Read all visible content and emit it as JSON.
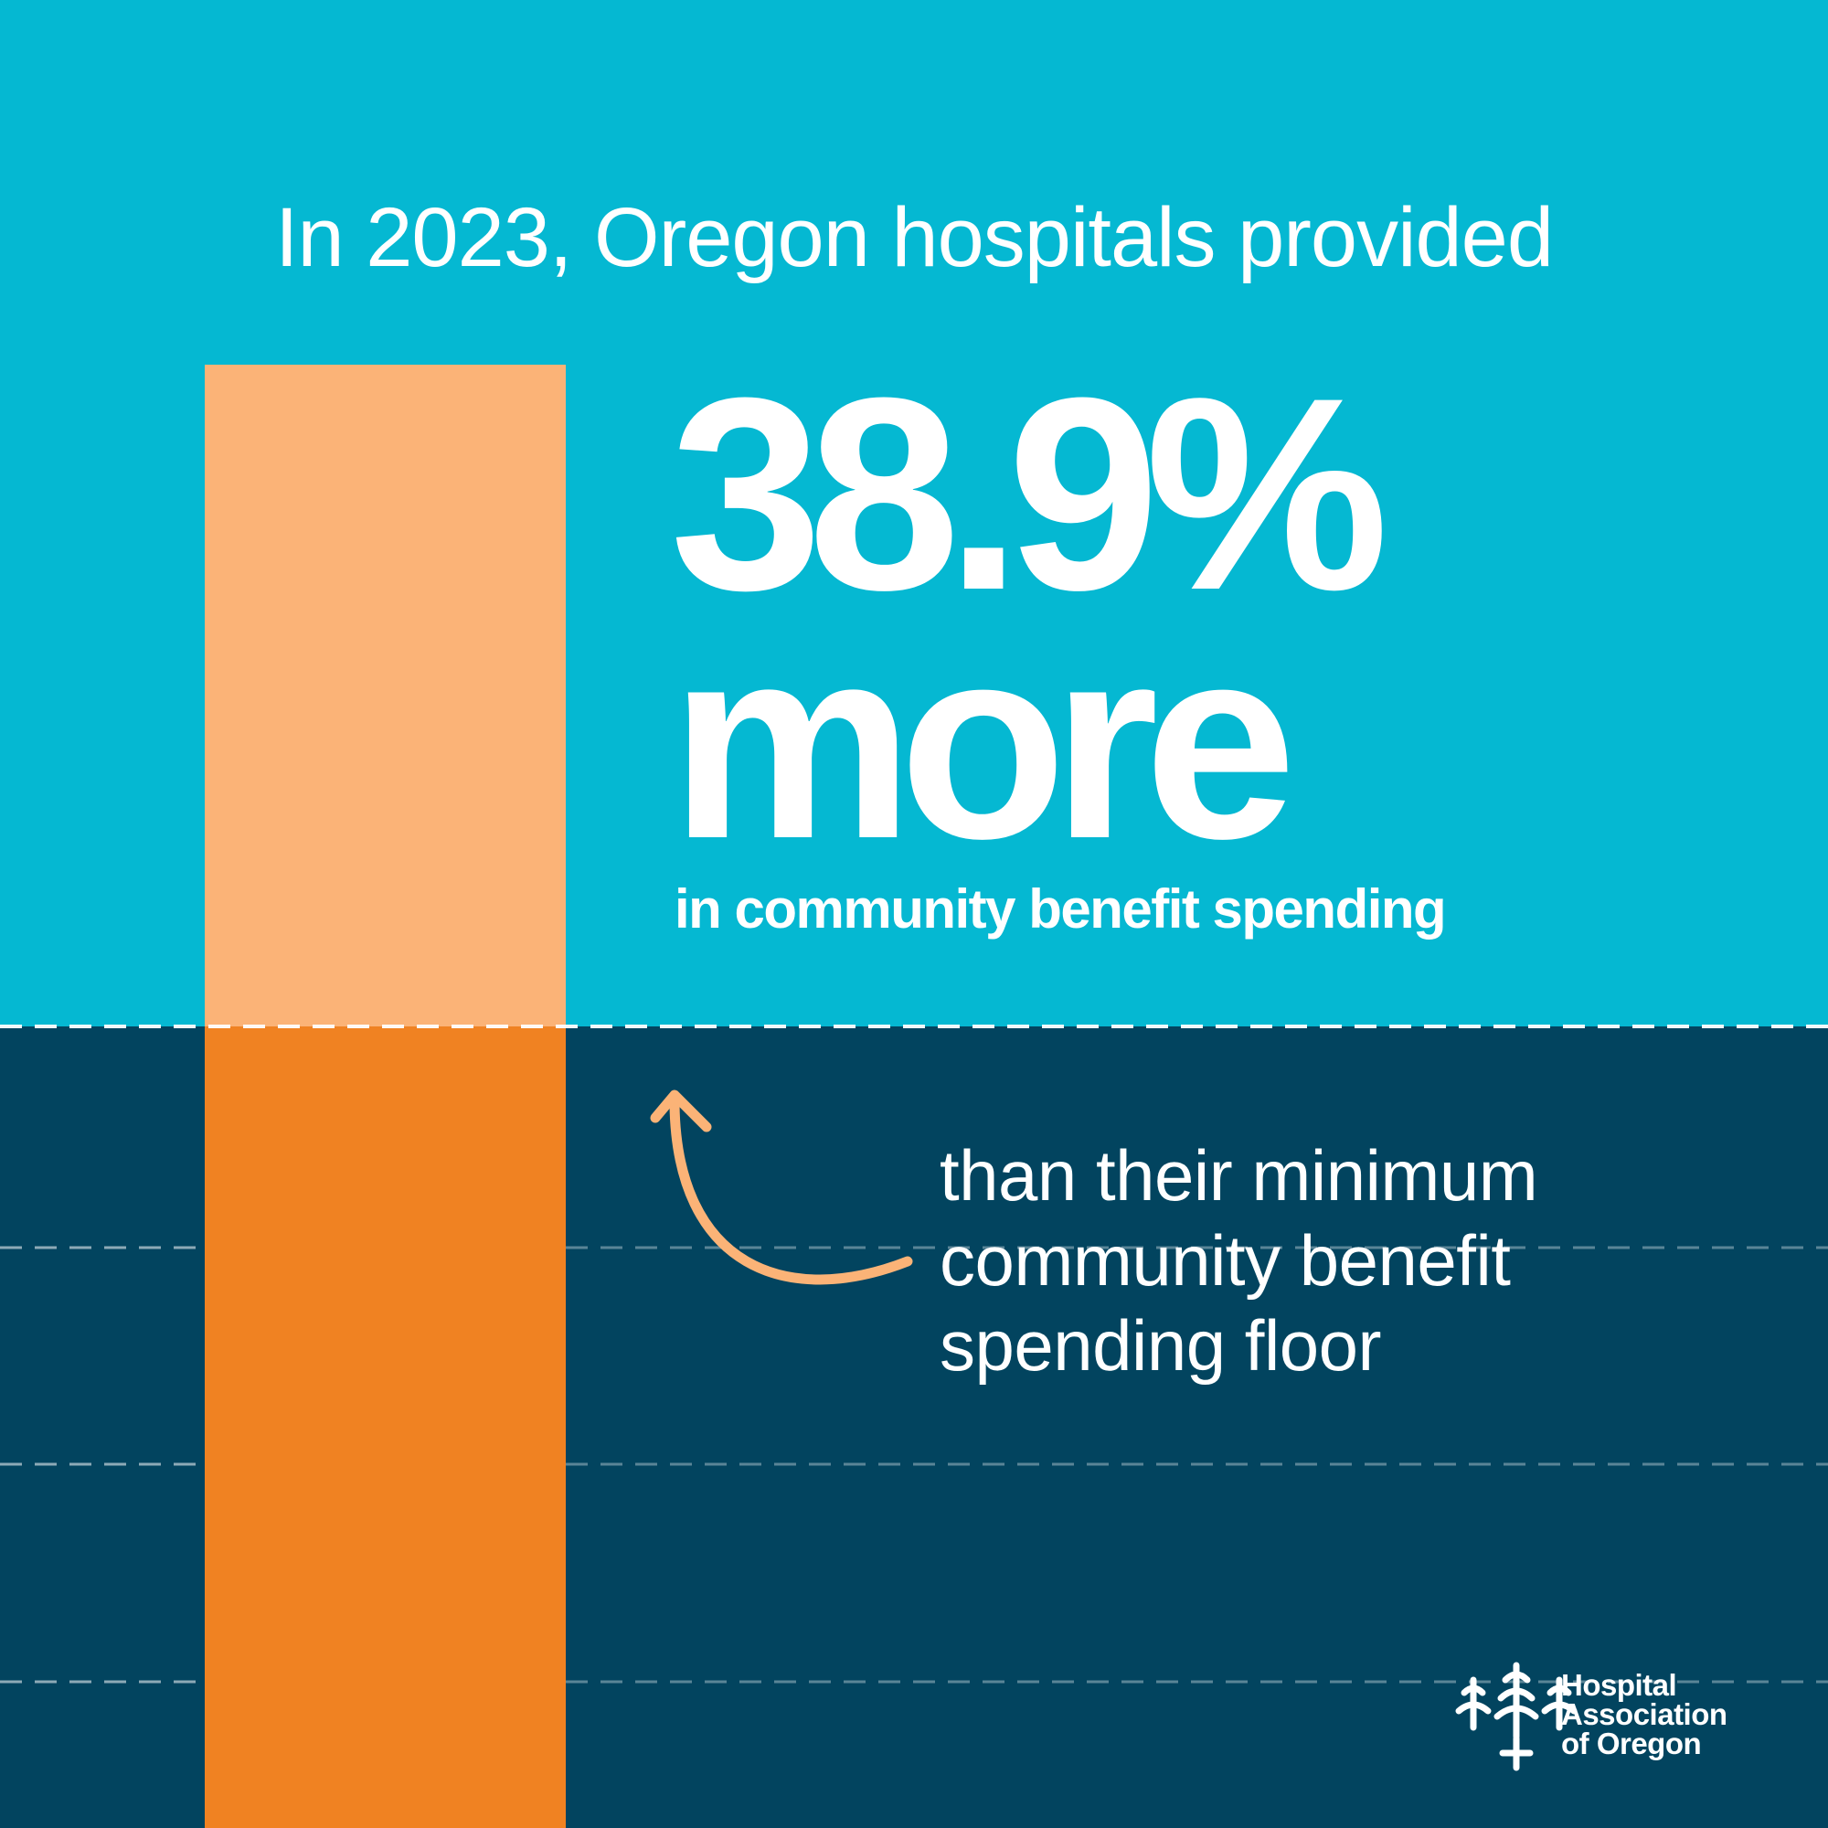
{
  "colors": {
    "top_background": "#05b8d2",
    "bottom_background": "#02445f",
    "bar_light": "#fbb377",
    "bar_dark": "#f08222",
    "arrow": "#fbb377",
    "text": "#ffffff"
  },
  "headline": "In 2023, Oregon hospitals provided",
  "stat": {
    "value": "38.9%",
    "word": "more",
    "subline": "in community benefit spending"
  },
  "comparison": {
    "lines": [
      "than their minimum",
      "community benefit",
      "spending floor"
    ]
  },
  "icons": {
    "arrow": "curved-up-arrow-icon",
    "logo": "tree-cross-logo-icon"
  },
  "logo": {
    "lines": [
      "Hospital",
      "Association",
      "of Oregon"
    ]
  }
}
